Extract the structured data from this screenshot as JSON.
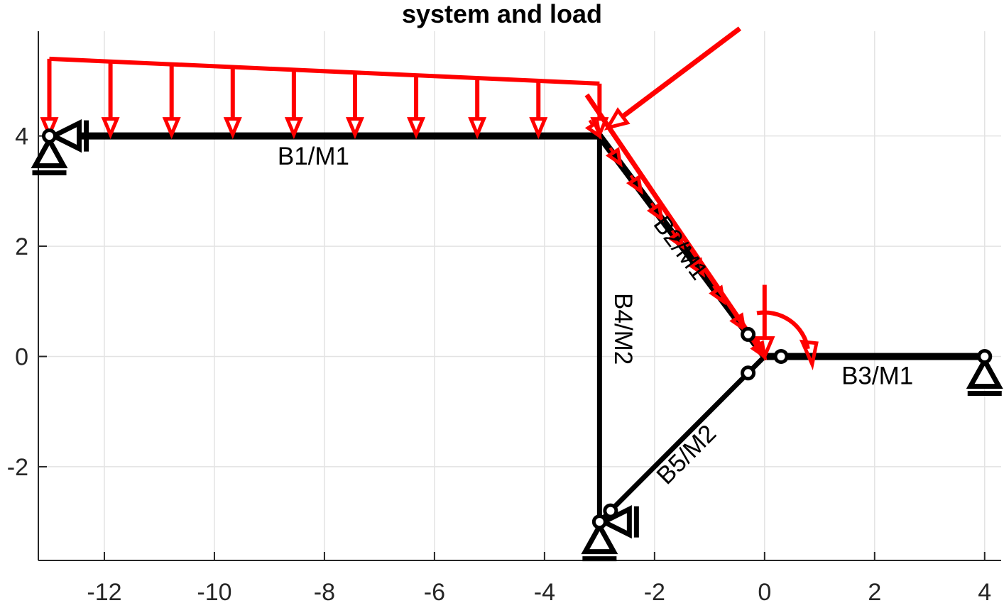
{
  "title": "system and load",
  "axes": {
    "xlim": [
      -13.2,
      4.3
    ],
    "ylim": [
      -3.7,
      5.9
    ],
    "xticks": [
      -12,
      -10,
      -8,
      -6,
      -4,
      -2,
      0,
      2,
      4
    ],
    "yticks": [
      -2,
      0,
      2,
      4
    ],
    "xtick_labels": [
      "-12",
      "-10",
      "-8",
      "-6",
      "-4",
      "-2",
      "0",
      "2",
      "4"
    ],
    "ytick_labels": [
      "-2",
      "0",
      "2",
      "4"
    ],
    "grid": true,
    "colors": {
      "grid": "#e3e3e3",
      "axis": "#262626",
      "member": "#000000",
      "load": "#ff0000"
    }
  },
  "members": [
    {
      "id": "B1",
      "label": "B1/M1",
      "from": [
        -13,
        4
      ],
      "to": [
        -3,
        4
      ],
      "label_at": [
        -8.2,
        3.6
      ],
      "label_rotate": false
    },
    {
      "id": "B2",
      "label": "B2/M1",
      "from": [
        -3,
        4
      ],
      "to": [
        0,
        0
      ],
      "label_at": [
        -1.55,
        1.95
      ],
      "label_rotate": true
    },
    {
      "id": "B3",
      "label": "B3/M1",
      "from": [
        0,
        0
      ],
      "to": [
        4,
        0
      ],
      "label_at": [
        2.05,
        -0.38
      ],
      "label_rotate": false
    },
    {
      "id": "B4",
      "label": "B4/M2",
      "from": [
        -3,
        4
      ],
      "to": [
        -3,
        -3
      ],
      "label_at": [
        -2.6,
        0.5
      ],
      "label_rotate": true
    },
    {
      "id": "B5",
      "label": "B5/M2",
      "from": [
        -3,
        -3
      ],
      "to": [
        0,
        0
      ],
      "label_at": [
        -1.4,
        -1.8
      ],
      "label_rotate": true
    }
  ],
  "hinges": [
    {
      "at": [
        -0.3,
        0.4
      ]
    },
    {
      "at": [
        0.3,
        0
      ]
    },
    {
      "at": [
        4,
        0
      ]
    },
    {
      "at": [
        -0.3,
        -0.3
      ]
    },
    {
      "at": [
        -2.8,
        -2.8
      ]
    },
    {
      "at": [
        -3,
        -3
      ]
    },
    {
      "at": [
        -13,
        4
      ]
    }
  ],
  "supports": [
    {
      "type": "fixed-hinge",
      "at": [
        -13,
        4
      ],
      "lateral": true
    },
    {
      "type": "roller",
      "at": [
        4,
        0
      ],
      "lateral": false
    },
    {
      "type": "fixed-hinge",
      "at": [
        -3,
        -3
      ],
      "lateral": true
    }
  ],
  "loads": {
    "distributed_b1": {
      "from": [
        -13,
        4
      ],
      "to": [
        -3,
        4
      ],
      "top_start": 5.4,
      "top_end": 4.95,
      "count": 10
    },
    "distributed_b2": {
      "from": [
        -3,
        4
      ],
      "to": [
        0,
        0
      ],
      "count": 9
    },
    "point_load": {
      "tip": [
        -2.85,
        4.15
      ],
      "tail": [
        -0.45,
        5.95
      ]
    },
    "vertical_load": {
      "tip": [
        0,
        0
      ],
      "tail": [
        0,
        1.3
      ]
    },
    "moment": {
      "center": [
        0,
        0
      ],
      "radius": 0.8
    }
  }
}
